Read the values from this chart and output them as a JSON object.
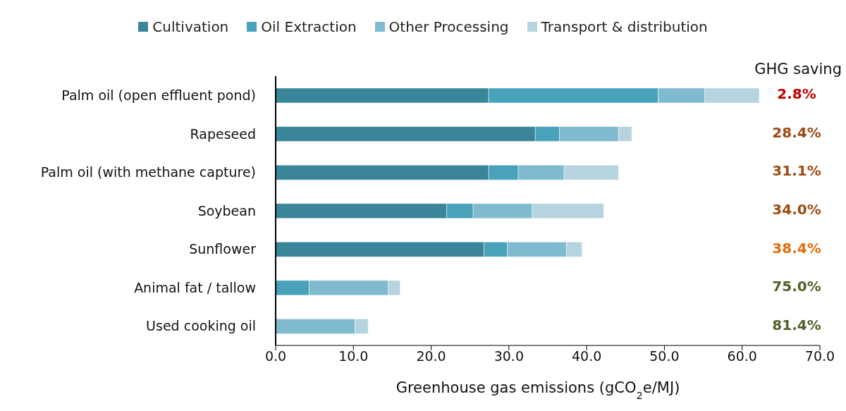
{
  "chart_data": {
    "type": "bar",
    "orientation": "horizontal",
    "stacked": true,
    "categories": [
      "Palm oil (open effluent pond)",
      "Rapeseed",
      "Palm oil (with methane capture)",
      "Soybean",
      "Sunflower",
      "Animal fat / tallow",
      "Used cooking oil"
    ],
    "series": [
      {
        "name": "Cultivation",
        "color": "#3a8599",
        "values": [
          27.4,
          33.4,
          27.4,
          22.0,
          26.8,
          0,
          0
        ]
      },
      {
        "name": "Oil Extraction",
        "color": "#48a2ba",
        "values": [
          21.8,
          3.1,
          3.8,
          3.4,
          3.0,
          4.3,
          0
        ]
      },
      {
        "name": "Other Processing",
        "color": "#7fbacf",
        "values": [
          6.0,
          7.6,
          5.9,
          7.6,
          7.6,
          10.2,
          10.2
        ]
      },
      {
        "name": "Transport & distribution",
        "color": "#b6d4df",
        "values": [
          7.0,
          1.7,
          7.0,
          9.2,
          2.0,
          1.5,
          1.7
        ]
      }
    ],
    "xlabel": "Greenhouse gas emissions (gCO$_{2}$e/MJ)",
    "xlim": [
      0,
      70
    ],
    "xticks": [
      {
        "value": 0,
        "label": "0.0"
      },
      {
        "value": 10,
        "label": "10.0"
      },
      {
        "value": 20,
        "label": "20.0"
      },
      {
        "value": 30,
        "label": "30.0"
      },
      {
        "value": 40,
        "label": "40.0"
      },
      {
        "value": 50,
        "label": "50.0"
      },
      {
        "value": 60,
        "label": "60.0"
      },
      {
        "value": 70,
        "label": "70.0"
      }
    ],
    "legend": "top",
    "grid": false,
    "annotations": [
      "GHG saving",
      "2.8%",
      "28.4%",
      "31.1%",
      "34.0%",
      "38.4%",
      "75.0%",
      "81.4%"
    ]
  }
}
